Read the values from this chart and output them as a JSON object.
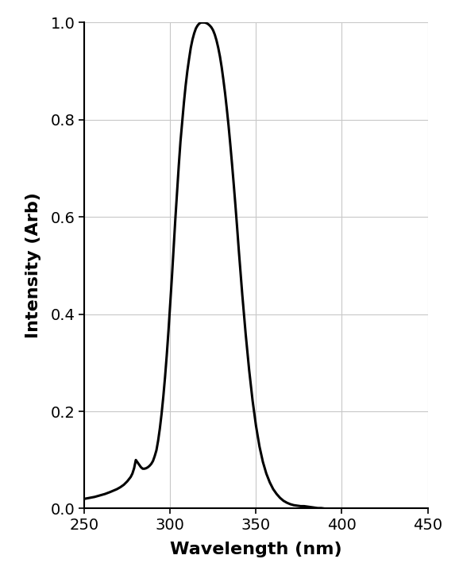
{
  "title": "",
  "xlabel": "Wavelength (nm)",
  "ylabel": "Intensity (Arb)",
  "xlim": [
    250,
    450
  ],
  "ylim": [
    0,
    1.0
  ],
  "xticks": [
    250,
    300,
    350,
    400,
    450
  ],
  "yticks": [
    0,
    0.2,
    0.4,
    0.6,
    0.8,
    1.0
  ],
  "line_color": "#000000",
  "line_width": 2.2,
  "background_color": "#ffffff",
  "grid_color": "#c8c8c8",
  "xlabel_fontsize": 16,
  "ylabel_fontsize": 16,
  "xlabel_fontweight": "bold",
  "ylabel_fontweight": "bold",
  "tick_fontsize": 14,
  "x": [
    250,
    253,
    256,
    259,
    262,
    265,
    267,
    269,
    271,
    273,
    275,
    277,
    278,
    279,
    280,
    281,
    282,
    283,
    284,
    285,
    286,
    287,
    288,
    289,
    290,
    291,
    292,
    293,
    294,
    295,
    296,
    297,
    298,
    299,
    300,
    301,
    302,
    303,
    304,
    305,
    306,
    307,
    308,
    309,
    310,
    311,
    312,
    313,
    314,
    315,
    316,
    317,
    318,
    319,
    320,
    321,
    322,
    323,
    324,
    325,
    326,
    327,
    328,
    329,
    330,
    331,
    332,
    333,
    334,
    335,
    336,
    337,
    338,
    339,
    340,
    342,
    344,
    346,
    348,
    350,
    352,
    354,
    356,
    358,
    360,
    362,
    364,
    366,
    368,
    370,
    372,
    374,
    376,
    378,
    380,
    382,
    384,
    386,
    388,
    390,
    392,
    394,
    396,
    398,
    400,
    402,
    404,
    406,
    408,
    410,
    415,
    420,
    430,
    450
  ],
  "y": [
    0.02,
    0.022,
    0.024,
    0.027,
    0.03,
    0.034,
    0.037,
    0.04,
    0.044,
    0.049,
    0.056,
    0.065,
    0.072,
    0.083,
    0.1,
    0.095,
    0.09,
    0.085,
    0.082,
    0.082,
    0.083,
    0.085,
    0.088,
    0.092,
    0.098,
    0.108,
    0.12,
    0.14,
    0.165,
    0.195,
    0.23,
    0.27,
    0.315,
    0.365,
    0.42,
    0.475,
    0.535,
    0.595,
    0.65,
    0.705,
    0.755,
    0.795,
    0.835,
    0.87,
    0.9,
    0.925,
    0.948,
    0.965,
    0.978,
    0.988,
    0.994,
    0.998,
    1.0,
    1.0,
    1.0,
    0.999,
    0.997,
    0.994,
    0.99,
    0.984,
    0.975,
    0.963,
    0.948,
    0.93,
    0.908,
    0.882,
    0.854,
    0.822,
    0.788,
    0.75,
    0.71,
    0.668,
    0.624,
    0.578,
    0.53,
    0.44,
    0.358,
    0.285,
    0.222,
    0.17,
    0.128,
    0.096,
    0.072,
    0.054,
    0.04,
    0.03,
    0.022,
    0.016,
    0.012,
    0.009,
    0.007,
    0.006,
    0.005,
    0.005,
    0.004,
    0.003,
    0.002,
    0.001,
    0.001,
    0.0,
    0.0,
    0.0,
    0.0,
    0.0,
    0.0,
    0.0,
    0.0,
    0.0,
    0.0,
    0.0,
    0.0,
    0.0,
    0.0,
    0.0
  ]
}
